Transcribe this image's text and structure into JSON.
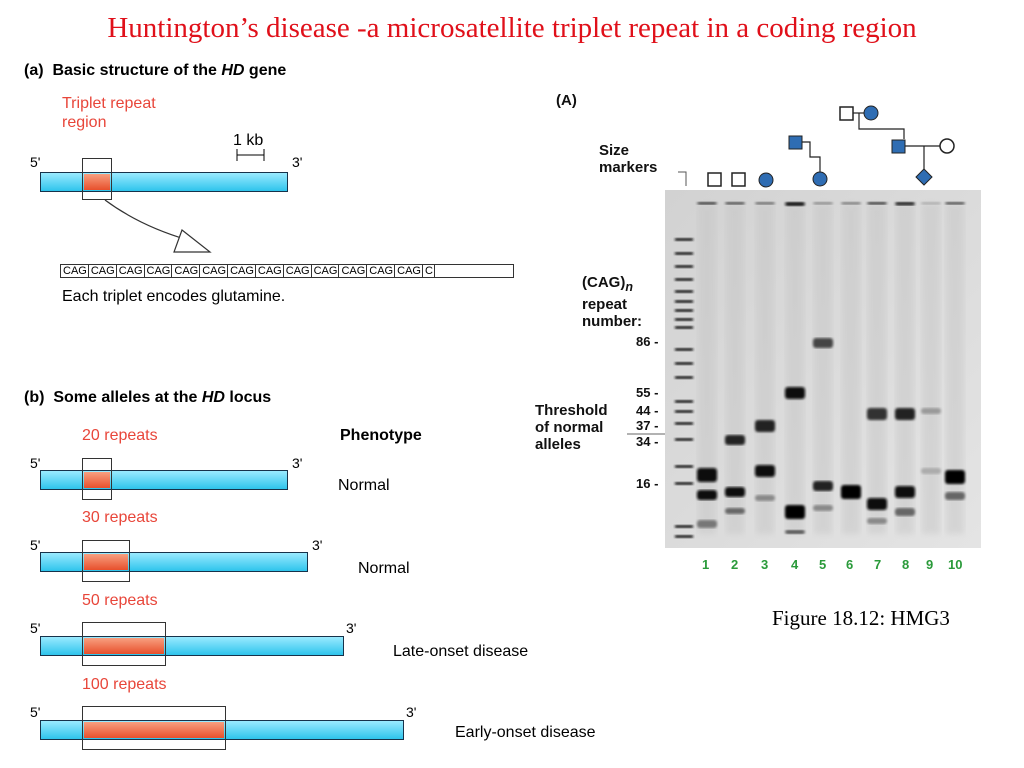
{
  "slide": {
    "title": "Huntington’s disease -a microsatellite triplet repeat in a coding region",
    "figure_caption": "Figure 18.12: HMG3"
  },
  "panel_a": {
    "heading_prefix": "(a)  Basic structure of the ",
    "heading_italic": "HD",
    "heading_suffix": " gene",
    "repeat_label_line1": "Triplet repeat",
    "repeat_label_line2": "region",
    "scale_label": "1 kb",
    "end5": "5'",
    "end3": "3'",
    "codons": [
      "CAG",
      "CAG",
      "CAG",
      "CAG",
      "CAG",
      "CAG",
      "CAG",
      "CAG",
      "CAG",
      "CAG",
      "CAG",
      "CAG",
      "CAG",
      "C"
    ],
    "caption": "Each triplet encodes glutamine."
  },
  "panel_b": {
    "heading_prefix": "(b)  Some alleles at the ",
    "heading_italic": "HD",
    "heading_suffix": " locus",
    "phenotype_header": "Phenotype",
    "end5": "5'",
    "end3": "3'",
    "alleles": [
      {
        "repeats": "20 repeats",
        "phenotype": "Normal"
      },
      {
        "repeats": "30 repeats",
        "phenotype": "Normal"
      },
      {
        "repeats": "50 repeats",
        "phenotype": "Late-onset disease"
      },
      {
        "repeats": "100 repeats",
        "phenotype": "Early-onset disease"
      }
    ]
  },
  "gel": {
    "panel_label": "(A)",
    "size_markers_line1": "Size",
    "size_markers_line2": "markers",
    "repeat_number_line1": "(CAG)",
    "repeat_number_sub": "n",
    "repeat_number_line2": "repeat",
    "repeat_number_line3": "number:",
    "threshold_line1": "Threshold",
    "threshold_line2": "of normal",
    "threshold_line3": "alleles",
    "ticks": [
      "86",
      "55",
      "44",
      "37",
      "34",
      "16"
    ],
    "lanes": [
      "1",
      "2",
      "3",
      "4",
      "5",
      "6",
      "7",
      "8",
      "9",
      "10"
    ],
    "colors": {
      "pedigree": "#2f6db3",
      "lane_numbers": "#2a9a3a",
      "repeat": "#e8502c",
      "gene": "#2ec4ec"
    }
  }
}
